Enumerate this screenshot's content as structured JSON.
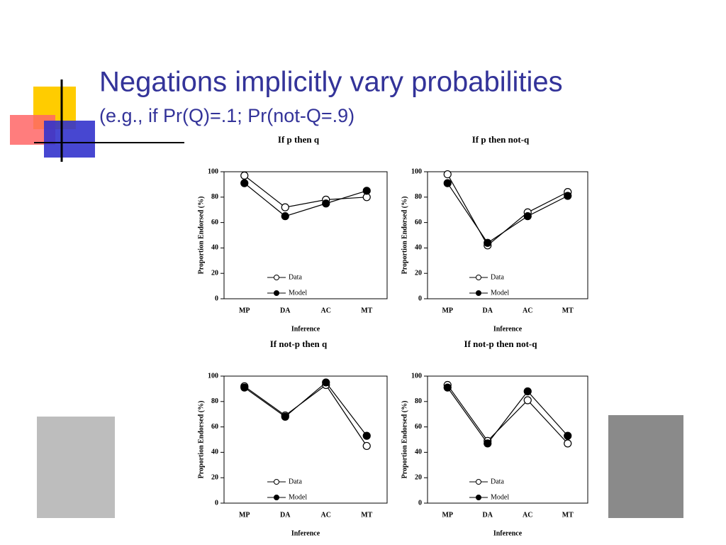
{
  "title": "Negations implicitly vary probabilities",
  "subtitle": "(e.g., if Pr(Q)=.1; Pr(not-Q=.9)",
  "chart_data": [
    {
      "type": "line",
      "title": "If p then q",
      "xlabel": "Inference",
      "ylabel": "Proportion Endorsed (%)",
      "categories": [
        "MP",
        "DA",
        "AC",
        "MT"
      ],
      "ylim": [
        0,
        100
      ],
      "yticks": [
        0,
        20,
        40,
        60,
        80,
        100
      ],
      "legend": "lower center",
      "series": [
        {
          "name": "Data",
          "color": "#000000",
          "marker": "open",
          "values": [
            97,
            72,
            78,
            80
          ]
        },
        {
          "name": "Model",
          "color": "#000000",
          "marker": "filled",
          "values": [
            91,
            65,
            75,
            85
          ]
        }
      ]
    },
    {
      "type": "line",
      "title": "If p then not-q",
      "xlabel": "Inference",
      "ylabel": "Proportion Endorsed (%)",
      "categories": [
        "MP",
        "DA",
        "AC",
        "MT"
      ],
      "ylim": [
        0,
        100
      ],
      "yticks": [
        0,
        20,
        40,
        60,
        80,
        100
      ],
      "legend": "lower center",
      "series": [
        {
          "name": "Data",
          "color": "#000000",
          "marker": "open",
          "values": [
            98,
            42,
            68,
            84
          ]
        },
        {
          "name": "Model",
          "color": "#000000",
          "marker": "filled",
          "values": [
            91,
            44,
            65,
            81
          ]
        }
      ]
    },
    {
      "type": "line",
      "title": "If not-p then q",
      "xlabel": "Inference",
      "ylabel": "Proportion Endorsed (%)",
      "categories": [
        "MP",
        "DA",
        "AC",
        "MT"
      ],
      "ylim": [
        0,
        100
      ],
      "yticks": [
        0,
        20,
        40,
        60,
        80,
        100
      ],
      "legend": "lower center",
      "series": [
        {
          "name": "Data",
          "color": "#000000",
          "marker": "open",
          "values": [
            92,
            69,
            93,
            45
          ]
        },
        {
          "name": "Model",
          "color": "#000000",
          "marker": "filled",
          "values": [
            91,
            68,
            95,
            53
          ]
        }
      ]
    },
    {
      "type": "line",
      "title": "If not-p then not-q",
      "xlabel": "Inference",
      "ylabel": "Proportion Endorsed (%)",
      "categories": [
        "MP",
        "DA",
        "AC",
        "MT"
      ],
      "ylim": [
        0,
        100
      ],
      "yticks": [
        0,
        20,
        40,
        60,
        80,
        100
      ],
      "legend": "lower center",
      "series": [
        {
          "name": "Data",
          "color": "#000000",
          "marker": "open",
          "values": [
            93,
            49,
            81,
            47
          ]
        },
        {
          "name": "Model",
          "color": "#000000",
          "marker": "filled",
          "values": [
            91,
            47,
            88,
            53
          ]
        }
      ]
    }
  ]
}
